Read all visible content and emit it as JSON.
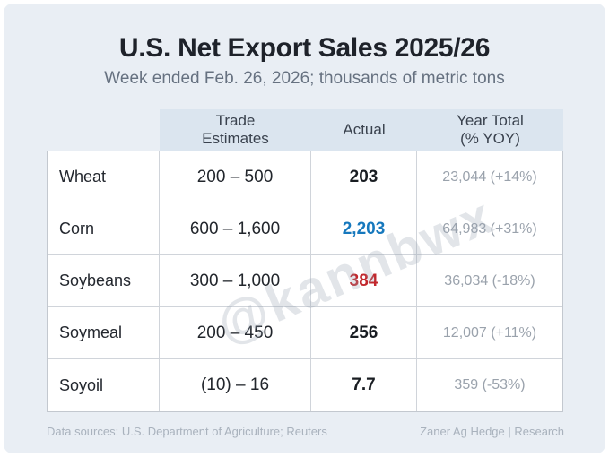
{
  "header": {
    "title": "U.S. Net Export Sales 2025/26",
    "subtitle": "Week ended Feb. 26, 2026; thousands of metric tons"
  },
  "table": {
    "column_headers": {
      "commodity": "",
      "trade_estimates": {
        "line1": "Trade",
        "line2": "Estimates"
      },
      "actual": {
        "line1": "Actual"
      },
      "year_total": {
        "line1": "Year Total",
        "line2": "(% YOY)"
      }
    },
    "rows": [
      {
        "commodity": "Wheat",
        "trade_estimate": "200 – 500",
        "actual": "203",
        "actual_color": "#191d22",
        "year_total": "23,044 (+14%)"
      },
      {
        "commodity": "Corn",
        "trade_estimate": "600 – 1,600",
        "actual": "2,203",
        "actual_color": "#1678bd",
        "year_total": "64,983 (+31%)"
      },
      {
        "commodity": "Soybeans",
        "trade_estimate": "300 – 1,000",
        "actual": "384",
        "actual_color": "#c2282d",
        "year_total": "36,034 (-18%)"
      },
      {
        "commodity": "Soymeal",
        "trade_estimate": "200 – 450",
        "actual": "256",
        "actual_color": "#191d22",
        "year_total": "12,007 (+11%)"
      },
      {
        "commodity": "Soyoil",
        "trade_estimate": "(10) – 16",
        "actual": "7.7",
        "actual_color": "#191d22",
        "year_total": "359 (-53%)"
      }
    ]
  },
  "watermark": {
    "text": "@kannbwx"
  },
  "footer": {
    "left": "Data sources: U.S. Department of Agriculture; Reuters",
    "right": "Zaner Ag Hedge | Research"
  },
  "colors": {
    "page_bg": "#ffffff",
    "panel_bg": "#e9eef4",
    "header_fill": "#dbe5ef",
    "cell_bg": "#ffffff",
    "border": "#c9ced5",
    "title_text": "#1e222a",
    "subtitle_text": "#667180",
    "year_total_text": "#9aa2ac",
    "footer_text": "#a9b2bd",
    "actual_default": "#191d22",
    "actual_blue": "#1678bd",
    "actual_red": "#c2282d"
  },
  "chart_data": {
    "type": "table",
    "title": "U.S. Net Export Sales 2025/26",
    "subtitle": "Week ended Feb. 26, 2026; thousands of metric tons",
    "units": "thousands of metric tons",
    "columns": [
      "Commodity",
      "Trade Estimates",
      "Actual",
      "Year Total (% YOY)"
    ],
    "categories": [
      "Wheat",
      "Corn",
      "Soybeans",
      "Soymeal",
      "Soyoil"
    ],
    "trade_estimates_low": [
      200,
      600,
      300,
      200,
      -10
    ],
    "trade_estimates_high": [
      500,
      1600,
      1000,
      450,
      16
    ],
    "actual": [
      203,
      2203,
      384,
      256,
      7.7
    ],
    "year_total": [
      23044,
      64983,
      36034,
      12007,
      359
    ],
    "yoy_percent": [
      14,
      31,
      -18,
      11,
      -53
    ]
  }
}
